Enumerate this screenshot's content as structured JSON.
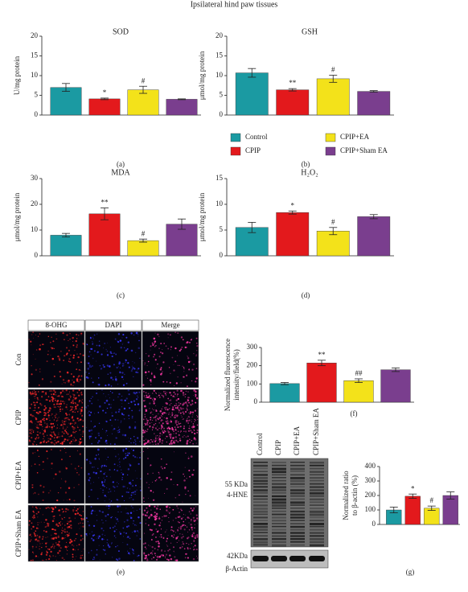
{
  "figure_title": "Ipsilateral hind paw tissues",
  "legend": {
    "labels": [
      "Control",
      "CPIP",
      "CPIP+EA",
      "CPIP+Sham EA"
    ],
    "colors": [
      "#1b9aa2",
      "#e3191c",
      "#f3e21a",
      "#7a3e8e"
    ]
  },
  "chart_data": [
    {
      "type": "bar",
      "label": "(a)",
      "title": "SOD",
      "ylabel": "U/mg protein",
      "ylim": [
        0,
        20
      ],
      "yticks": [
        0,
        5,
        10,
        15,
        20
      ],
      "values": [
        7.0,
        4.1,
        6.4,
        4.0
      ],
      "errors": [
        1.0,
        0.2,
        0.9,
        0.1
      ],
      "annotations": [
        null,
        "*",
        "#",
        null
      ]
    },
    {
      "type": "bar",
      "label": "(b)",
      "title": "GSH",
      "ylabel": "μmol/mg protein",
      "ylim": [
        0,
        20
      ],
      "yticks": [
        0,
        5,
        10,
        15,
        20
      ],
      "values": [
        10.7,
        6.4,
        9.2,
        6.0
      ],
      "errors": [
        1.1,
        0.3,
        0.9,
        0.2
      ],
      "annotations": [
        null,
        "**",
        "#",
        null
      ]
    },
    {
      "type": "bar",
      "label": "(c)",
      "title": "MDA",
      "ylabel": "μmol/mg protein",
      "ylim": [
        0,
        30
      ],
      "yticks": [
        0,
        10,
        20,
        30
      ],
      "values": [
        8.0,
        16.3,
        5.9,
        12.3
      ],
      "errors": [
        0.7,
        2.3,
        0.6,
        2.0
      ],
      "annotations": [
        null,
        "**",
        "#",
        null
      ]
    },
    {
      "type": "bar",
      "label": "(d)",
      "title": "H₂O₂",
      "ylabel": "μmol/mg protein",
      "ylim": [
        0,
        15
      ],
      "yticks": [
        0,
        5,
        10,
        15
      ],
      "values": [
        5.5,
        8.4,
        4.8,
        7.6
      ],
      "errors": [
        1.0,
        0.3,
        0.7,
        0.4
      ],
      "annotations": [
        null,
        "*",
        "#",
        null
      ]
    },
    {
      "type": "bar",
      "label": "(f)",
      "ylabel": [
        "Normalized fluorescence",
        "intensity/field(%)"
      ],
      "ylim": [
        0,
        300
      ],
      "yticks": [
        0,
        100,
        200,
        300
      ],
      "values": [
        102,
        215,
        118,
        178
      ],
      "errors": [
        6,
        15,
        10,
        10
      ],
      "annotations": [
        null,
        "**",
        "##",
        null
      ]
    },
    {
      "type": "bar",
      "label": "(g)",
      "ylabel": [
        "Normalized ratio",
        "to β-actin (%)"
      ],
      "ylim": [
        0,
        400
      ],
      "yticks": [
        0,
        100,
        200,
        300,
        400
      ],
      "values": [
        100,
        195,
        112,
        200
      ],
      "errors": [
        20,
        15,
        15,
        25
      ],
      "annotations": [
        null,
        "*",
        "#",
        null
      ]
    }
  ],
  "images": {
    "label": "(e)",
    "columns": [
      "8-OHG",
      "DAPI",
      "Merge"
    ],
    "rows": [
      "Con",
      "CPIP",
      "CPIP+EA",
      "CPIP+Sham EA"
    ]
  },
  "blot": {
    "lanes": [
      "Control",
      "CPIP",
      "CPIP+EA",
      "CPIP+Sham EA"
    ],
    "markers": [
      "55 KDa",
      "4-HNE",
      "42KDa",
      "β-Actin"
    ]
  }
}
